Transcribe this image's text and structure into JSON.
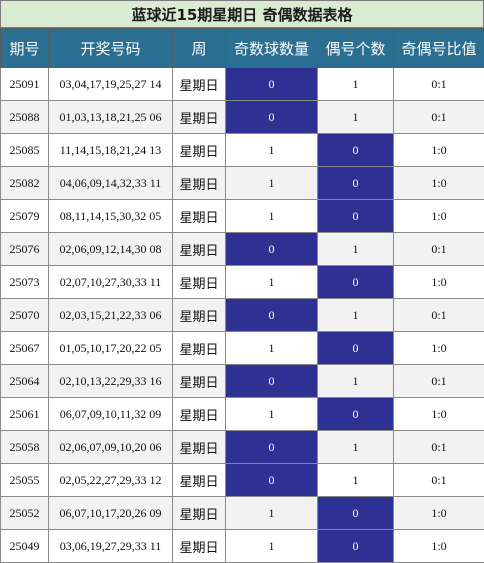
{
  "title": "蓝球近15期星期日 奇偶数据表格",
  "headers": [
    "期号",
    "开奖号码",
    "周",
    "奇数球数量",
    "偶号个数",
    "奇偶号比值"
  ],
  "colors": {
    "header_bg": "#2a6f92",
    "title_bg": "#d9ecd3",
    "highlight": "#2e3191"
  },
  "rows": [
    {
      "period": "25091",
      "numbers": "03,04,17,19,25,27 14",
      "week": "星期日",
      "odd": "0",
      "even": "1",
      "ratio": "0:1"
    },
    {
      "period": "25088",
      "numbers": "01,03,13,18,21,25 06",
      "week": "星期日",
      "odd": "0",
      "even": "1",
      "ratio": "0:1"
    },
    {
      "period": "25085",
      "numbers": "11,14,15,18,21,24 13",
      "week": "星期日",
      "odd": "1",
      "even": "0",
      "ratio": "1:0"
    },
    {
      "period": "25082",
      "numbers": "04,06,09,14,32,33 11",
      "week": "星期日",
      "odd": "1",
      "even": "0",
      "ratio": "1:0"
    },
    {
      "period": "25079",
      "numbers": "08,11,14,15,30,32 05",
      "week": "星期日",
      "odd": "1",
      "even": "0",
      "ratio": "1:0"
    },
    {
      "period": "25076",
      "numbers": "02,06,09,12,14,30 08",
      "week": "星期日",
      "odd": "0",
      "even": "1",
      "ratio": "0:1"
    },
    {
      "period": "25073",
      "numbers": "02,07,10,27,30,33 11",
      "week": "星期日",
      "odd": "1",
      "even": "0",
      "ratio": "1:0"
    },
    {
      "period": "25070",
      "numbers": "02,03,15,21,22,33 06",
      "week": "星期日",
      "odd": "0",
      "even": "1",
      "ratio": "0:1"
    },
    {
      "period": "25067",
      "numbers": "01,05,10,17,20,22 05",
      "week": "星期日",
      "odd": "1",
      "even": "0",
      "ratio": "1:0"
    },
    {
      "period": "25064",
      "numbers": "02,10,13,22,29,33 16",
      "week": "星期日",
      "odd": "0",
      "even": "1",
      "ratio": "0:1"
    },
    {
      "period": "25061",
      "numbers": "06,07,09,10,11,32 09",
      "week": "星期日",
      "odd": "1",
      "even": "0",
      "ratio": "1:0"
    },
    {
      "period": "25058",
      "numbers": "02,06,07,09,10,20 06",
      "week": "星期日",
      "odd": "0",
      "even": "1",
      "ratio": "0:1"
    },
    {
      "period": "25055",
      "numbers": "02,05,22,27,29,33 12",
      "week": "星期日",
      "odd": "0",
      "even": "1",
      "ratio": "0:1"
    },
    {
      "period": "25052",
      "numbers": "06,07,10,17,20,26 09",
      "week": "星期日",
      "odd": "1",
      "even": "0",
      "ratio": "1:0"
    },
    {
      "period": "25049",
      "numbers": "03,06,19,27,29,33 11",
      "week": "星期日",
      "odd": "1",
      "even": "0",
      "ratio": "1:0"
    }
  ]
}
